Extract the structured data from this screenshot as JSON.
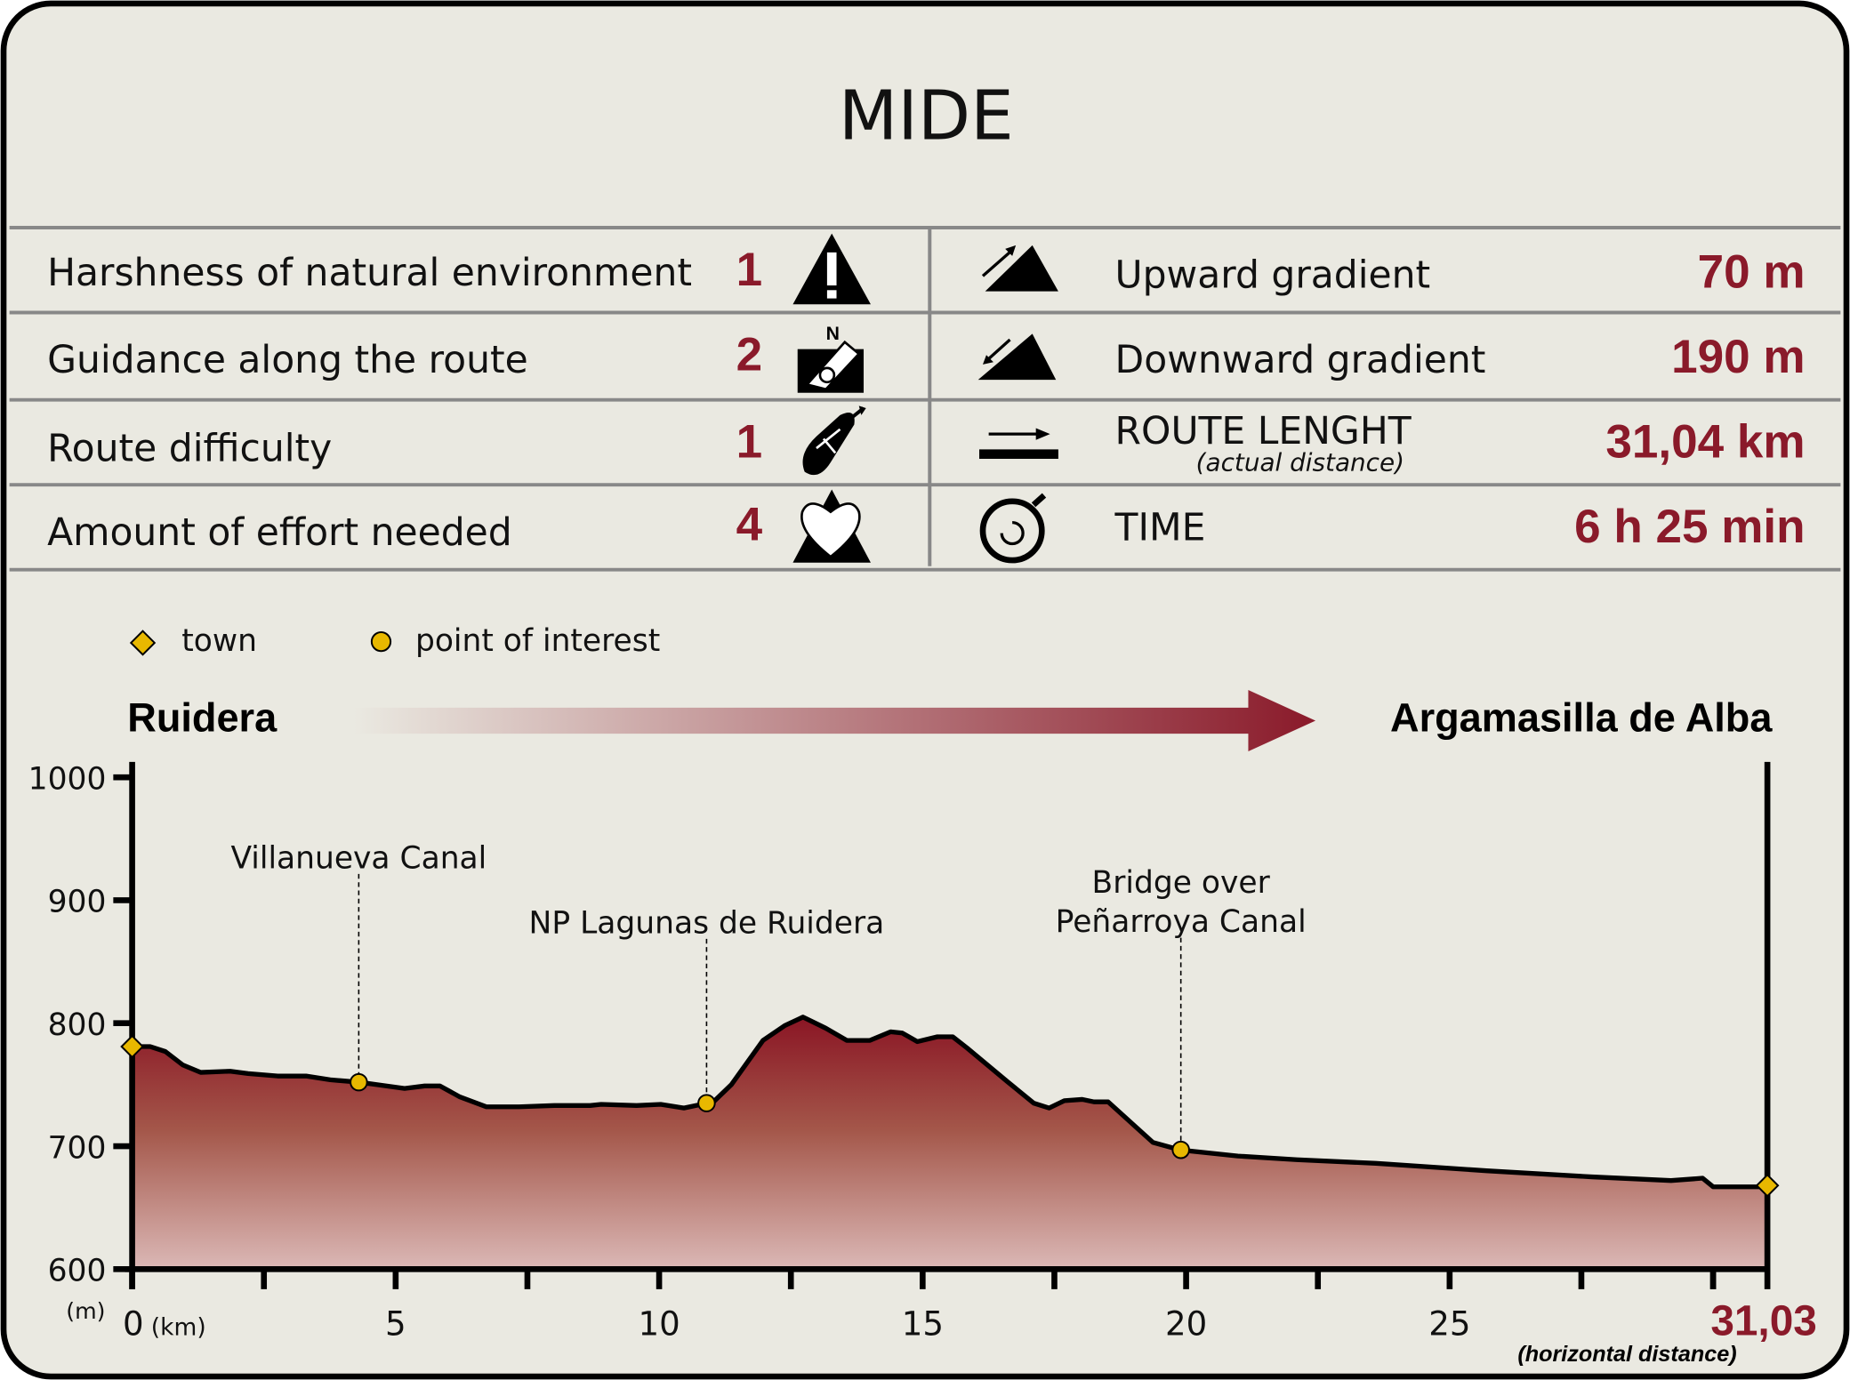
{
  "title": "MIDE",
  "mide": [
    {
      "label": "Harshness of natural environment",
      "value": "1",
      "icon": "warning-icon"
    },
    {
      "label": "Guidance along the route",
      "value": "2",
      "icon": "compass-hand-icon"
    },
    {
      "label": "Route difficulty",
      "value": "1",
      "icon": "footprint-icon"
    },
    {
      "label": "Amount of effort needed",
      "value": "4",
      "icon": "heart-effort-icon"
    }
  ],
  "stats": [
    {
      "label": "Upward gradient",
      "value": "70 m",
      "icon": "upward-gradient-icon"
    },
    {
      "label": "Downward gradient",
      "value": "190 m",
      "icon": "downward-gradient-icon"
    },
    {
      "label": "ROUTE LENGHT",
      "sublabel": "(actual distance)",
      "value": "31,04 km",
      "icon": "route-length-icon"
    },
    {
      "label": "TIME",
      "value": "6 h 25 min",
      "icon": "stopwatch-icon"
    }
  ],
  "legend": {
    "town": "town",
    "poi": "point of interest"
  },
  "start": "Ruidera",
  "end": "Argamasilla de Alba",
  "colors": {
    "accent": "#8a1a2a",
    "marker": "#e8b800",
    "background": "#eae9e1"
  },
  "chart_data": {
    "type": "area",
    "xlabel": "(km)",
    "ylabel": "(m)",
    "x_end_label": "31,03",
    "x_note": "(horizontal distance)",
    "xlim": [
      0,
      31.03
    ],
    "ylim": [
      600,
      1000
    ],
    "yticks": [
      "600",
      "700",
      "800",
      "900",
      "1000"
    ],
    "xticks": [
      "0",
      "5",
      "10",
      "15",
      "20",
      "25"
    ],
    "profile": [
      [
        0,
        781
      ],
      [
        0.34,
        781
      ],
      [
        0.63,
        777
      ],
      [
        0.96,
        766
      ],
      [
        1.3,
        760
      ],
      [
        1.86,
        761
      ],
      [
        2.2,
        759
      ],
      [
        2.76,
        757
      ],
      [
        3.3,
        757
      ],
      [
        3.76,
        754
      ],
      [
        4.3,
        752
      ],
      [
        4.65,
        750
      ],
      [
        5.17,
        747
      ],
      [
        5.55,
        749
      ],
      [
        5.84,
        749
      ],
      [
        6.22,
        740
      ],
      [
        6.72,
        732
      ],
      [
        7.34,
        732
      ],
      [
        8.01,
        733
      ],
      [
        8.69,
        733
      ],
      [
        8.9,
        734
      ],
      [
        9.57,
        733
      ],
      [
        10.03,
        734
      ],
      [
        10.47,
        731
      ],
      [
        11.03,
        736
      ],
      [
        11.37,
        750
      ],
      [
        11.97,
        786
      ],
      [
        12.38,
        798
      ],
      [
        12.73,
        805
      ],
      [
        13.16,
        796
      ],
      [
        13.56,
        786
      ],
      [
        14.0,
        786
      ],
      [
        14.39,
        793
      ],
      [
        14.61,
        792
      ],
      [
        14.9,
        785
      ],
      [
        15.28,
        789
      ],
      [
        15.57,
        789
      ],
      [
        15.84,
        780
      ],
      [
        16.62,
        752
      ],
      [
        17.11,
        735
      ],
      [
        17.4,
        731
      ],
      [
        17.69,
        737
      ],
      [
        18.03,
        738
      ],
      [
        18.25,
        736
      ],
      [
        18.52,
        736
      ],
      [
        19.37,
        703
      ],
      [
        19.88,
        697
      ],
      [
        20.98,
        692
      ],
      [
        22.1,
        689
      ],
      [
        23.6,
        686
      ],
      [
        25.7,
        680
      ],
      [
        27.7,
        675
      ],
      [
        29.2,
        672
      ],
      [
        29.8,
        674
      ],
      [
        30.0,
        667
      ],
      [
        31.03,
        667
      ]
    ],
    "towns": [
      {
        "km": 0,
        "ele": 781
      },
      {
        "km": 31.03,
        "ele": 668
      }
    ],
    "pois": [
      {
        "name": "Villanueva Canal",
        "km": 4.3,
        "ele": 752,
        "labelLines": [
          "Villanueva Canal"
        ]
      },
      {
        "name": "NP Lagunas de Ruidera",
        "km": 10.9,
        "ele": 735,
        "labelLines": [
          "NP Lagunas de Ruidera"
        ]
      },
      {
        "name": "Bridge over Peñarroya Canal",
        "km": 19.9,
        "ele": 697,
        "labelLines": [
          "Bridge over",
          "Peñarroya Canal"
        ]
      }
    ]
  }
}
